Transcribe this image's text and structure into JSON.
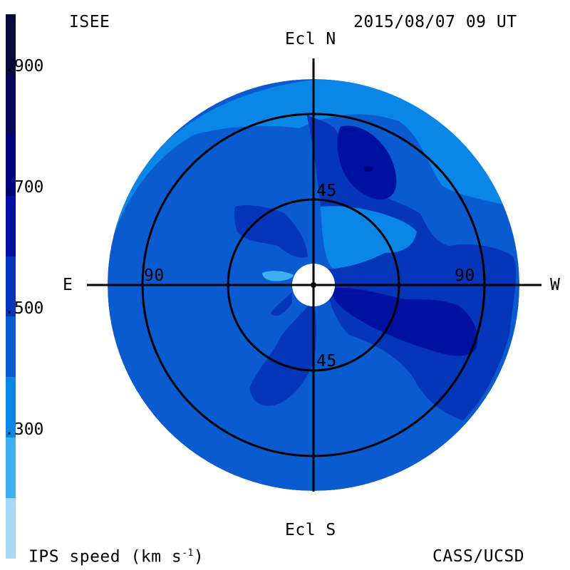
{
  "header": {
    "left_label": "ISEE",
    "timestamp": "2015/08/07 09 UT"
  },
  "footer": {
    "colorbar_title": "IPS speed (km s",
    "colorbar_title_sup": "-1",
    "colorbar_title_end": ")",
    "credit": "CASS/UCSD"
  },
  "colorbar": {
    "colors_top_to_bottom": [
      "#0a0a3a",
      "#06065a",
      "#00007e",
      "#0010a0",
      "#0535b8",
      "#0a5ad0",
      "#0a86e6",
      "#3eb0f2",
      "#a8d8f8"
    ],
    "ticks": [
      {
        "label": ".900",
        "value": 900
      },
      {
        "label": ".700",
        "value": 700
      },
      {
        "label": ".500",
        "value": 500
      },
      {
        "label": ".300",
        "value": 300
      }
    ]
  },
  "map": {
    "axis_labels": {
      "north": "Ecl N",
      "south": "Ecl S",
      "east": "E",
      "west": "W"
    },
    "ring_labels": {
      "inner_north": "45",
      "inner_south": "45",
      "outer_east": "90",
      "outer_west": "90"
    },
    "colors": {
      "light": "#0a86e6",
      "medium": "#0a5ad0",
      "dark": "#0535b8",
      "darker": "#0010a0",
      "darkest": "#00007e",
      "pale": "#3eb0f2"
    }
  }
}
